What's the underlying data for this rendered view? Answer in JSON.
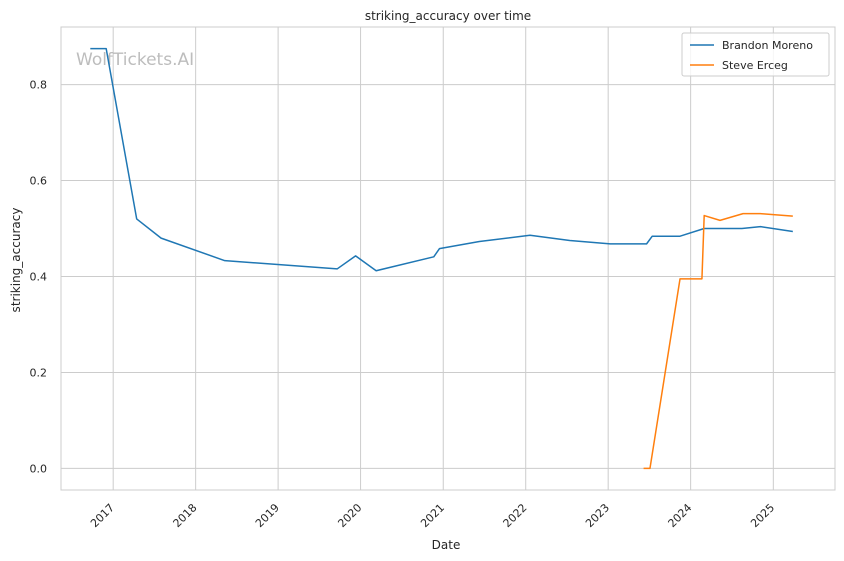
{
  "watermark": "WolfTickets.AI",
  "chart_data": {
    "type": "line",
    "title": "striking_accuracy over time",
    "xlabel": "Date",
    "ylabel": "striking_accuracy",
    "x_ticks": [
      "2017",
      "2018",
      "2019",
      "2020",
      "2021",
      "2022",
      "2023",
      "2024",
      "2025"
    ],
    "y_ticks": [
      "0.0",
      "0.2",
      "0.4",
      "0.6",
      "0.8"
    ],
    "xlim": [
      "2016-05-15",
      "2025-10-01"
    ],
    "ylim": [
      -0.045,
      0.92
    ],
    "grid": true,
    "legend_position": "top-right",
    "colors": {
      "Brandon Moreno": "#1f77b4",
      "Steve Erceg": "#ff7f0e",
      "grid": "#cccccc",
      "frame": "#cccccc"
    },
    "series": [
      {
        "name": "Brandon Moreno",
        "points": [
          [
            "2016-09-25",
            0.875
          ],
          [
            "2016-12-01",
            0.875
          ],
          [
            "2017-04-15",
            0.52
          ],
          [
            "2017-08-01",
            0.48
          ],
          [
            "2018-05-10",
            0.433
          ],
          [
            "2019-09-20",
            0.416
          ],
          [
            "2019-12-10",
            0.443
          ],
          [
            "2020-03-10",
            0.412
          ],
          [
            "2020-11-20",
            0.441
          ],
          [
            "2020-12-15",
            0.458
          ],
          [
            "2021-06-10",
            0.473
          ],
          [
            "2022-01-20",
            0.486
          ],
          [
            "2022-07-15",
            0.475
          ],
          [
            "2023-01-10",
            0.468
          ],
          [
            "2023-06-20",
            0.468
          ],
          [
            "2023-07-15",
            0.484
          ],
          [
            "2023-11-15",
            0.484
          ],
          [
            "2024-03-01",
            0.5
          ],
          [
            "2024-08-15",
            0.5
          ],
          [
            "2024-11-05",
            0.504
          ],
          [
            "2025-03-25",
            0.494
          ]
        ]
      },
      {
        "name": "Steve Erceg",
        "points": [
          [
            "2023-06-10",
            0.0
          ],
          [
            "2023-07-05",
            0.0
          ],
          [
            "2023-11-15",
            0.395
          ],
          [
            "2024-02-20",
            0.395
          ],
          [
            "2024-03-01",
            0.527
          ],
          [
            "2024-05-10",
            0.517
          ],
          [
            "2024-08-20",
            0.531
          ],
          [
            "2024-11-05",
            0.531
          ],
          [
            "2025-03-25",
            0.526
          ]
        ]
      }
    ]
  }
}
